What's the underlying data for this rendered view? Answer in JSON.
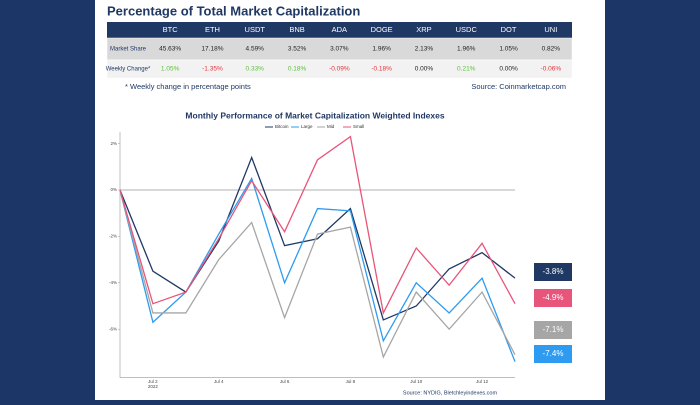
{
  "table": {
    "title": "Percentage of Total Market Capitalization",
    "header": [
      "BTC",
      "ETH",
      "USDT",
      "BNB",
      "ADA",
      "DOGE",
      "XRP",
      "USDC",
      "DOT",
      "UNI"
    ],
    "rows": [
      {
        "label": "Market Share",
        "cells": [
          "45.63%",
          "17.18%",
          "4.59%",
          "3.52%",
          "3.07%",
          "1.96%",
          "2.13%",
          "1.96%",
          "1.05%",
          "0.82%"
        ]
      },
      {
        "label": "Weekly Change*",
        "cells": [
          "1.05%",
          "-1.35%",
          "0.33%",
          "0.18%",
          "-0.09%",
          "-0.18%",
          "0.00%",
          "0.21%",
          "0.00%",
          "-0.06%"
        ]
      }
    ],
    "footnote": "* Weekly change in percentage points",
    "source": "Source: Coinmarketcap.com"
  },
  "chart_data": {
    "type": "line",
    "title": "Monthly Performance of Market Capitalization Weighted Indexes",
    "categories": [
      null,
      "Jul 2",
      null,
      "Jul 4",
      null,
      "Jul 6",
      null,
      "Jul 8",
      null,
      "Jul 10",
      null,
      "Jul 12",
      null
    ],
    "x_year": "2022",
    "ylim": [
      -8,
      2.5
    ],
    "yticks": [
      {
        "value": 2,
        "label": "2%"
      },
      {
        "value": 0,
        "label": "0%"
      },
      {
        "value": -2,
        "label": "-2%"
      },
      {
        "value": -4,
        "label": "-4%"
      },
      {
        "value": -6,
        "label": "-6%"
      }
    ],
    "series": [
      {
        "name": "Bitcoin",
        "color": "#1f3864",
        "end_label": "-3.8%",
        "values": [
          0,
          -3.5,
          -4.4,
          -2.2,
          1.4,
          -2.4,
          -2.1,
          -0.8,
          -5.6,
          -5.0,
          -3.4,
          -2.7,
          -3.8
        ]
      },
      {
        "name": "Large",
        "color": "#2e9bf0",
        "end_label": "-7.4%",
        "values": [
          0,
          -5.7,
          -4.4,
          -1.9,
          0.5,
          -4.0,
          -0.8,
          -0.9,
          -6.5,
          -4.0,
          -5.3,
          -3.8,
          -7.4
        ]
      },
      {
        "name": "Mid",
        "color": "#a6a6a6",
        "end_label": "-7.1%",
        "values": [
          0,
          -5.3,
          -5.3,
          -3.0,
          -1.4,
          -5.5,
          -1.9,
          -1.6,
          -7.2,
          -4.4,
          -6.0,
          -4.4,
          -7.1
        ]
      },
      {
        "name": "Small",
        "color": "#e8557a",
        "end_label": "-4.9%",
        "values": [
          0,
          -4.9,
          -4.4,
          -2.1,
          0.4,
          -1.8,
          1.3,
          2.3,
          -5.3,
          -2.5,
          -4.1,
          -2.3,
          -4.9
        ]
      }
    ],
    "source": "Source: NYDIG, Bletchleyindexes.com"
  }
}
